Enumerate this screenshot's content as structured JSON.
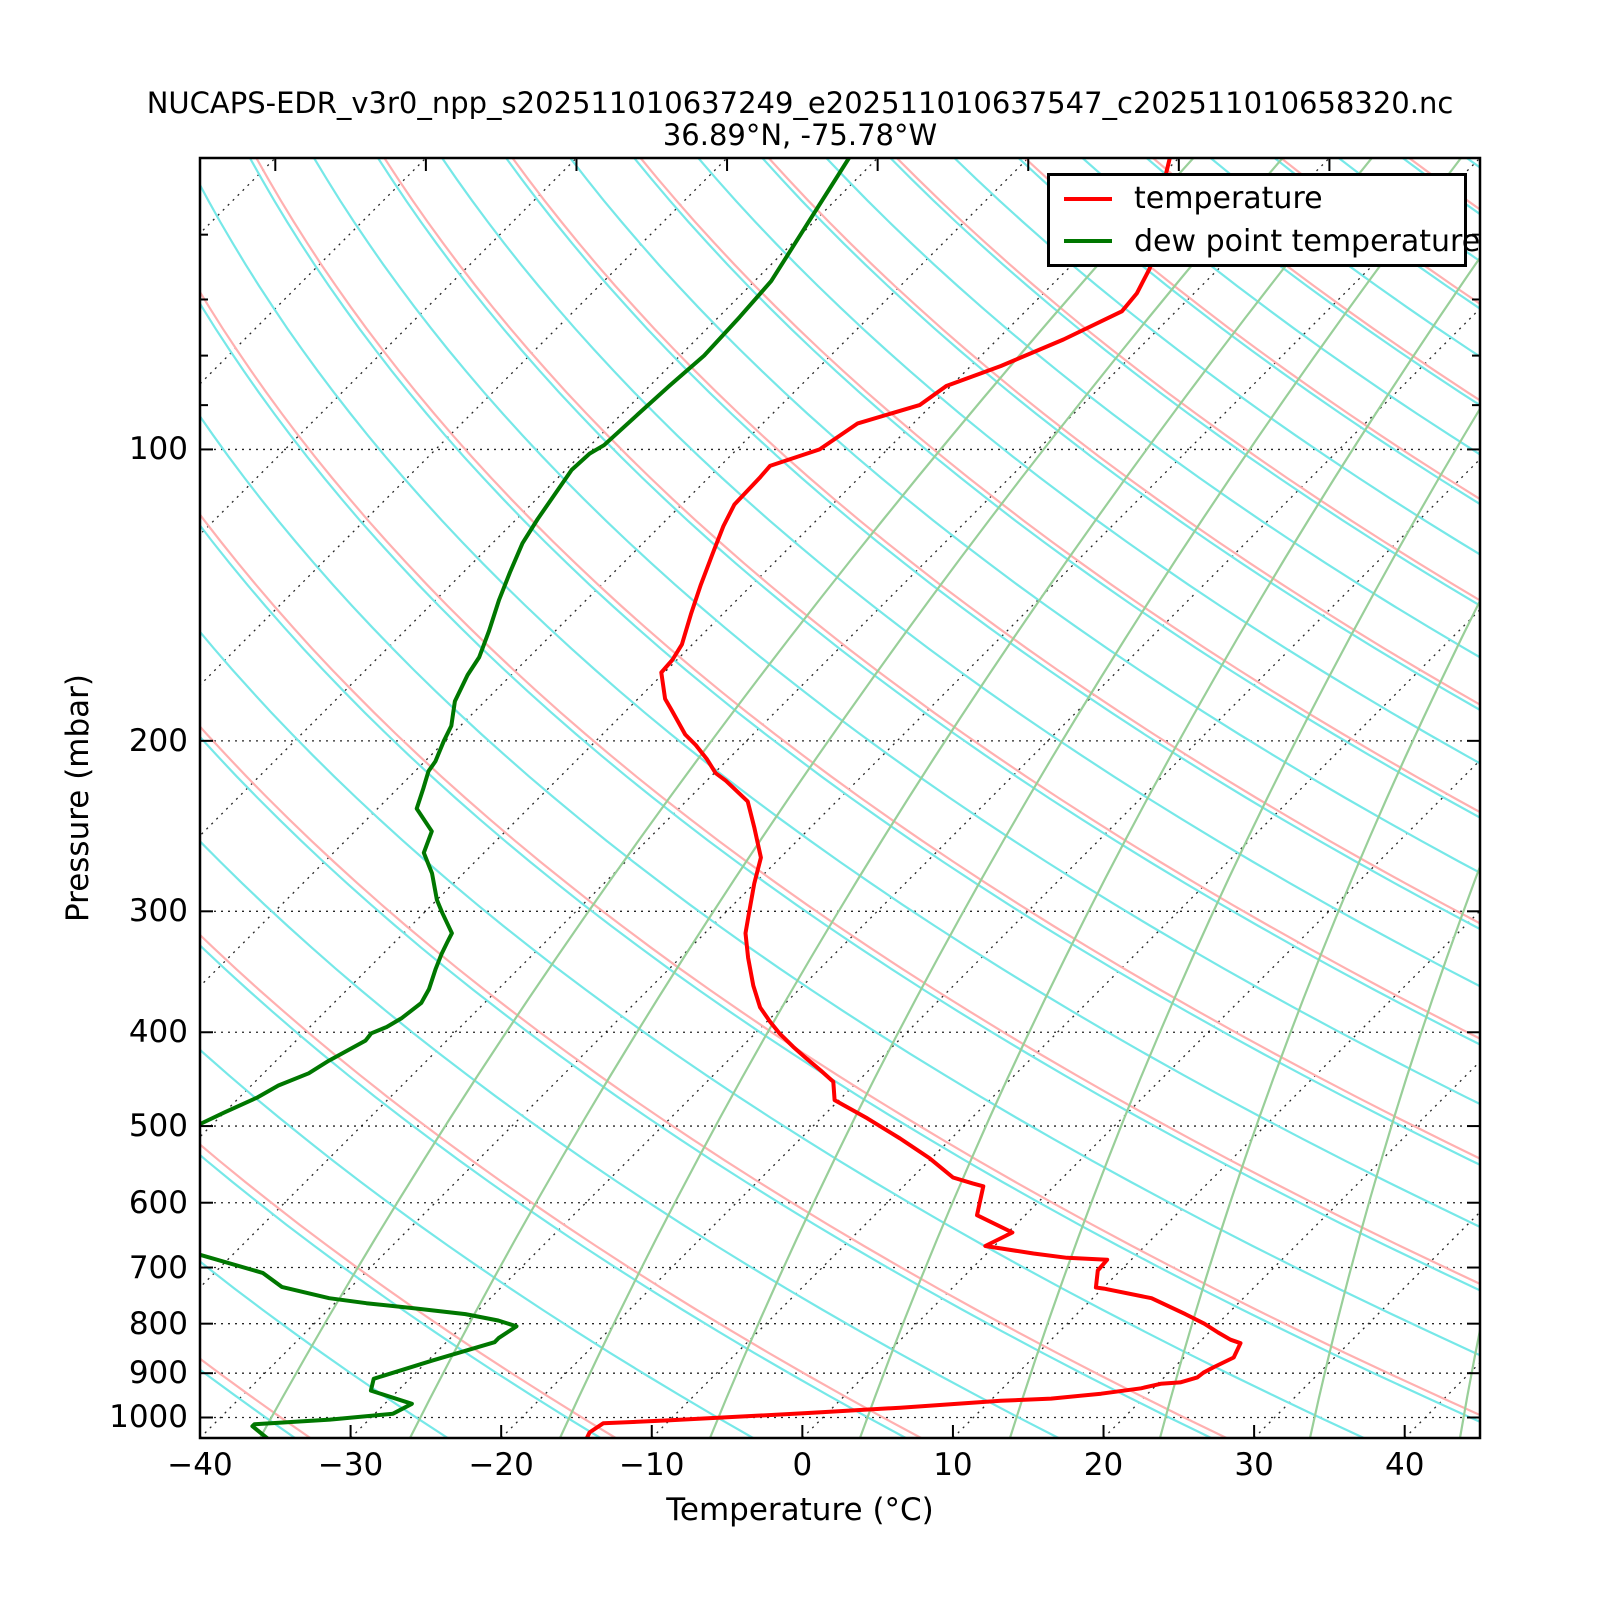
{
  "header": {
    "title": "NUCAPS-EDR_v3r0_npp_s202511010637249_e202511010637547_c202511010658320.nc",
    "subtitle": "36.89°N, -75.78°W"
  },
  "axes": {
    "xlabel": "Temperature (°C)",
    "ylabel": "Pressure (mbar)",
    "x_ticks": [
      -40,
      -30,
      -20,
      -10,
      0,
      10,
      20,
      30,
      40
    ],
    "y_ticks": [
      100,
      200,
      300,
      400,
      500,
      600,
      700,
      800,
      900,
      1000
    ],
    "y_minor_ticks": [
      60,
      70,
      80,
      90
    ],
    "xlim": [
      -40,
      45
    ],
    "pressure_lim": [
      1050,
      50
    ],
    "skew_deg": 45
  },
  "legend": {
    "entries": [
      {
        "label": "temperature",
        "color": "#ff0000"
      },
      {
        "label": "dew point temperature",
        "color": "#007700"
      }
    ]
  },
  "chart_data": {
    "type": "line",
    "variant": "skew-t-log-p",
    "title": "NUCAPS-EDR_v3r0_npp_s202511010637249_e202511010637547_c202511010658320.nc",
    "subtitle": "36.89°N, -75.78°W",
    "xlabel": "Temperature (°C)",
    "ylabel": "Pressure (mbar)",
    "xlim": [
      -40,
      45
    ],
    "ylim": [
      1050,
      50
    ],
    "grid": "dotted",
    "legend_position": "upper right",
    "background": {
      "isotherm_color": "#000000",
      "dry_adiabat_color": "#ffb0b0",
      "moist_adiabat_color": "#76e8e8",
      "mixing_line_color": "#99cf99"
    },
    "series": [
      {
        "name": "temperature",
        "color": "#ff0000",
        "units": {
          "pressure": "mbar",
          "temperature": "C"
        },
        "points": [
          [
            50,
            -60.6
          ],
          [
            56,
            -58.2
          ],
          [
            62,
            -55.7
          ],
          [
            65,
            -54.6
          ],
          [
            69,
            -53.8
          ],
          [
            72,
            -53.6
          ],
          [
            77,
            -55.6
          ],
          [
            82,
            -58.0
          ],
          [
            86,
            -60.3
          ],
          [
            90,
            -60.8
          ],
          [
            94,
            -63.7
          ],
          [
            100,
            -64.5
          ],
          [
            104,
            -66.7
          ],
          [
            107,
            -66.6
          ],
          [
            114,
            -66.5
          ],
          [
            120,
            -65.8
          ],
          [
            128,
            -64.7
          ],
          [
            138,
            -63.4
          ],
          [
            148,
            -62.1
          ],
          [
            159,
            -60.7
          ],
          [
            165,
            -60.3
          ],
          [
            170,
            -60.2
          ],
          [
            181,
            -58.2
          ],
          [
            186,
            -57.0
          ],
          [
            197,
            -54.5
          ],
          [
            202,
            -53.1
          ],
          [
            209,
            -51.4
          ],
          [
            216,
            -49.9
          ],
          [
            220,
            -48.7
          ],
          [
            231,
            -45.9
          ],
          [
            246,
            -43.7
          ],
          [
            264,
            -41.3
          ],
          [
            281,
            -40.0
          ],
          [
            300,
            -38.5
          ],
          [
            316,
            -37.3
          ],
          [
            335,
            -35.5
          ],
          [
            358,
            -33.3
          ],
          [
            377,
            -31.4
          ],
          [
            390,
            -29.8
          ],
          [
            401,
            -28.4
          ],
          [
            414,
            -26.6
          ],
          [
            426,
            -24.9
          ],
          [
            438,
            -23.2
          ],
          [
            450,
            -21.6
          ],
          [
            470,
            -20.3
          ],
          [
            491,
            -16.9
          ],
          [
            515,
            -13.4
          ],
          [
            540,
            -10.1
          ],
          [
            565,
            -7.3
          ],
          [
            573,
            -5.6
          ],
          [
            577,
            -4.7
          ],
          [
            618,
            -3.2
          ],
          [
            644,
            0.3
          ],
          [
            665,
            -0.6
          ],
          [
            677,
            3.1
          ],
          [
            684,
            5.6
          ],
          [
            687,
            8.4
          ],
          [
            705,
            8.5
          ],
          [
            734,
            9.5
          ],
          [
            736,
            10.1
          ],
          [
            753,
            13.9
          ],
          [
            782,
            17.2
          ],
          [
            800,
            19.1
          ],
          [
            817,
            20.6
          ],
          [
            831,
            21.9
          ],
          [
            838,
            22.8
          ],
          [
            867,
            23.3
          ],
          [
            888,
            22.6
          ],
          [
            899,
            22.3
          ],
          [
            909,
            22.2
          ],
          [
            920,
            21.4
          ],
          [
            923,
            20.2
          ],
          [
            933,
            19.2
          ],
          [
            945,
            16.9
          ],
          [
            956,
            13.9
          ],
          [
            961,
            10.7
          ],
          [
            977,
            4.5
          ],
          [
            989,
            -1.0
          ],
          [
            1007,
            -10.1
          ],
          [
            1014,
            -14.2
          ],
          [
            1036,
            -14.5
          ],
          [
            1058,
            -14.2
          ]
        ]
      },
      {
        "name": "dew point temperature",
        "color": "#007700",
        "units": {
          "pressure": "mbar",
          "temperature": "C"
        },
        "points": [
          [
            50,
            -81.9
          ],
          [
            59,
            -80.2
          ],
          [
            67,
            -78.9
          ],
          [
            73,
            -78.6
          ],
          [
            80,
            -78.4
          ],
          [
            86,
            -78.7
          ],
          [
            92,
            -78.9
          ],
          [
            99,
            -79.1
          ],
          [
            101,
            -79.5
          ],
          [
            105,
            -79.6
          ],
          [
            118,
            -78.6
          ],
          [
            125,
            -78.0
          ],
          [
            134,
            -76.9
          ],
          [
            143,
            -75.8
          ],
          [
            154,
            -74.4
          ],
          [
            164,
            -73.3
          ],
          [
            171,
            -72.9
          ],
          [
            182,
            -72.0
          ],
          [
            193,
            -70.6
          ],
          [
            200,
            -70.1
          ],
          [
            210,
            -69.3
          ],
          [
            215,
            -69.1
          ],
          [
            224,
            -68.3
          ],
          [
            235,
            -67.4
          ],
          [
            248,
            -64.9
          ],
          [
            261,
            -64.0
          ],
          [
            274,
            -62.1
          ],
          [
            292,
            -60.0
          ],
          [
            301,
            -58.8
          ],
          [
            316,
            -56.8
          ],
          [
            323,
            -56.5
          ],
          [
            332,
            -56.1
          ],
          [
            344,
            -55.5
          ],
          [
            361,
            -54.6
          ],
          [
            373,
            -54.2
          ],
          [
            387,
            -54.5
          ],
          [
            395,
            -54.9
          ],
          [
            401,
            -55.5
          ],
          [
            408,
            -55.4
          ],
          [
            428,
            -56.5
          ],
          [
            441,
            -57.0
          ],
          [
            454,
            -58.2
          ],
          [
            467,
            -58.8
          ],
          [
            484,
            -60.0
          ],
          [
            497,
            -60.8
          ],
          [
            540,
            -68.0
          ],
          [
            580,
            -72.0
          ],
          [
            625,
            -66.0
          ],
          [
            679,
            -52.2
          ],
          [
            709,
            -46.8
          ],
          [
            733,
            -44.6
          ],
          [
            753,
            -40.7
          ],
          [
            762,
            -37.9
          ],
          [
            771,
            -34.5
          ],
          [
            782,
            -30.6
          ],
          [
            794,
            -28.0
          ],
          [
            805,
            -26.4
          ],
          [
            828,
            -26.8
          ],
          [
            836,
            -26.8
          ],
          [
            873,
            -29.7
          ],
          [
            912,
            -32.4
          ],
          [
            938,
            -31.8
          ],
          [
            968,
            -28.2
          ],
          [
            991,
            -28.8
          ],
          [
            1005,
            -32.6
          ],
          [
            1016,
            -37.3
          ],
          [
            1021,
            -37.3
          ],
          [
            1056,
            -35.2
          ]
        ]
      }
    ]
  }
}
